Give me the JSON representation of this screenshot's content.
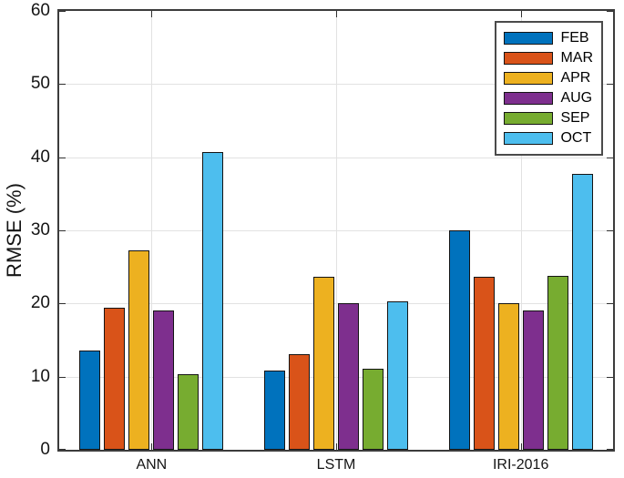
{
  "figure": {
    "background": "#ffffff",
    "axis_color": "#3c3c3c",
    "grid_color": "#e2e2e2",
    "bar_edge_color": "#141414"
  },
  "chart_data": {
    "type": "bar",
    "title": "",
    "xlabel": "",
    "ylabel": "RMSE (%)",
    "ylim": [
      0,
      60
    ],
    "yticks": [
      0,
      10,
      20,
      30,
      40,
      50,
      60
    ],
    "grid": true,
    "tick_direction": "in",
    "legend_position": "top-right",
    "categories": [
      "ANN",
      "LSTM",
      "IRI-2016"
    ],
    "series": [
      {
        "name": "FEB",
        "color": "#0072BD",
        "values": [
          13.6,
          10.8,
          30.0
        ]
      },
      {
        "name": "MAR",
        "color": "#D95319",
        "values": [
          19.4,
          13.1,
          23.7
        ]
      },
      {
        "name": "APR",
        "color": "#EDB120",
        "values": [
          27.3,
          23.6,
          20.0
        ]
      },
      {
        "name": "AUG",
        "color": "#7E2F8E",
        "values": [
          19.1,
          20.1,
          19.1
        ]
      },
      {
        "name": "SEP",
        "color": "#77AC30",
        "values": [
          10.3,
          11.1,
          23.8
        ]
      },
      {
        "name": "OCT",
        "color": "#4DBEEE",
        "values": [
          40.7,
          20.3,
          37.7
        ]
      }
    ]
  }
}
